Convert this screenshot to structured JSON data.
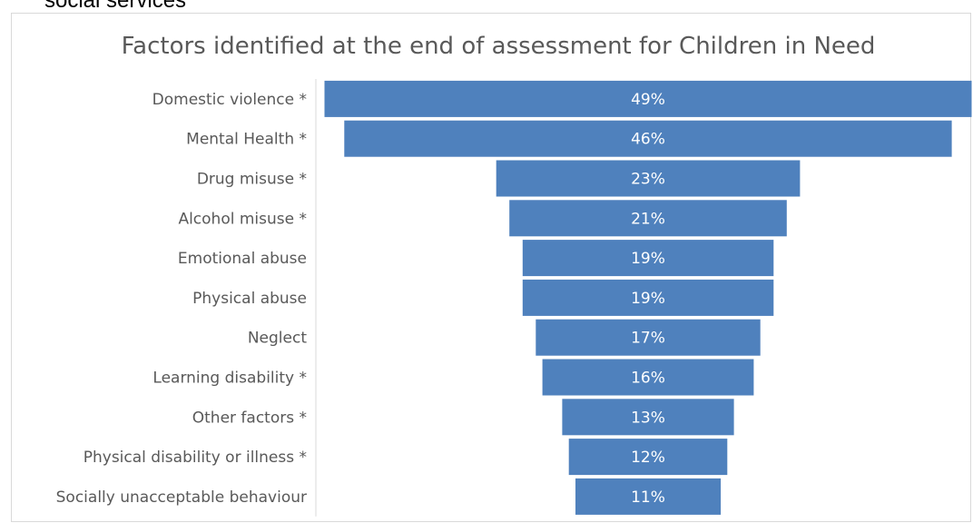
{
  "header_fragment": "social services",
  "chart_data": {
    "type": "bar",
    "subtype": "funnel",
    "title": "Factors identified at the end of assessment for Children in Need",
    "categories": [
      "Domestic violence *",
      "Mental Health *",
      "Drug misuse *",
      "Alcohol misuse *",
      "Emotional abuse",
      "Physical abuse",
      "Neglect",
      "Learning disability *",
      "Other factors *",
      "Physical disability or illness *",
      "Socially unacceptable behaviour"
    ],
    "values": [
      49,
      46,
      23,
      21,
      19,
      19,
      17,
      16,
      13,
      12,
      11
    ],
    "value_labels": [
      "49%",
      "46%",
      "23%",
      "21%",
      "19%",
      "19%",
      "17%",
      "16%",
      "13%",
      "12%",
      "11%"
    ],
    "unit": "%",
    "xlim": [
      0,
      49
    ],
    "grid": false,
    "legend": "none",
    "colors": {
      "bar": "#4f81bd",
      "bar_label": "#ffffff",
      "category_label": "#595959",
      "title": "#595959",
      "axis": "#d9d9d9"
    }
  }
}
